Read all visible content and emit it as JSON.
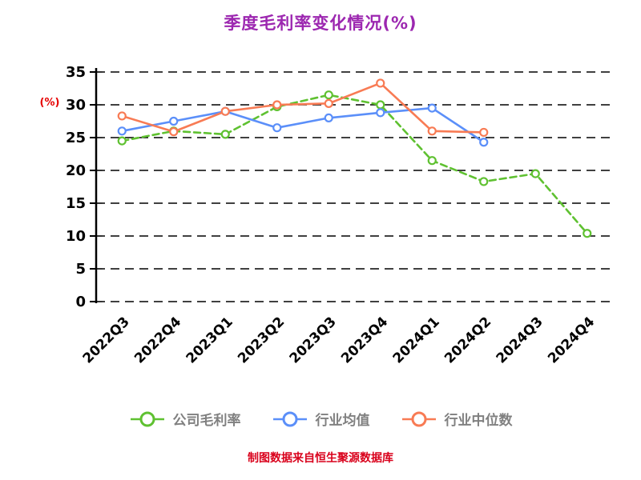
{
  "title": "季度毛利率变化情况(%)",
  "y_axis": {
    "label": "(%)"
  },
  "footer": "制图数据来自恒生聚源数据库",
  "colors": {
    "title": "#9C27B0",
    "y_axis_label": "#E60000",
    "footer": "#D9001B",
    "grid": "#000000",
    "tick_text": "#000000",
    "axis_line": "#000000",
    "legend_text": "#808080",
    "series_company": "#5FC131",
    "series_industry_avg": "#5B8FF9",
    "series_industry_median": "#F87B54"
  },
  "chart_data": {
    "type": "line",
    "title": "季度毛利率变化情况(%)",
    "xlabel": "",
    "ylabel": "(%)",
    "categories": [
      "2022Q3",
      "2022Q4",
      "2023Q1",
      "2023Q2",
      "2023Q3",
      "2023Q4",
      "2024Q1",
      "2024Q2",
      "2024Q3",
      "2024Q4"
    ],
    "ylim": [
      0,
      35
    ],
    "yticks": [
      0,
      5,
      10,
      15,
      20,
      25,
      30,
      35
    ],
    "grid": "horizontal-dashed",
    "legend_position": "bottom",
    "series": [
      {
        "name": "公司毛利率",
        "color": "#5FC131",
        "style": "dashed",
        "marker": "circle",
        "values": [
          24.5,
          26.0,
          25.5,
          29.7,
          31.5,
          30.0,
          21.5,
          18.3,
          19.5,
          10.4
        ]
      },
      {
        "name": "行业均值",
        "color": "#5B8FF9",
        "style": "solid",
        "marker": "circle",
        "values": [
          26.0,
          27.5,
          29.0,
          26.5,
          28.0,
          28.8,
          29.5,
          24.3,
          null,
          null
        ]
      },
      {
        "name": "行业中位数",
        "color": "#F87B54",
        "style": "solid",
        "marker": "circle",
        "values": [
          28.3,
          25.9,
          29.0,
          30.0,
          30.2,
          33.3,
          26.0,
          25.8,
          null,
          null
        ]
      }
    ]
  }
}
